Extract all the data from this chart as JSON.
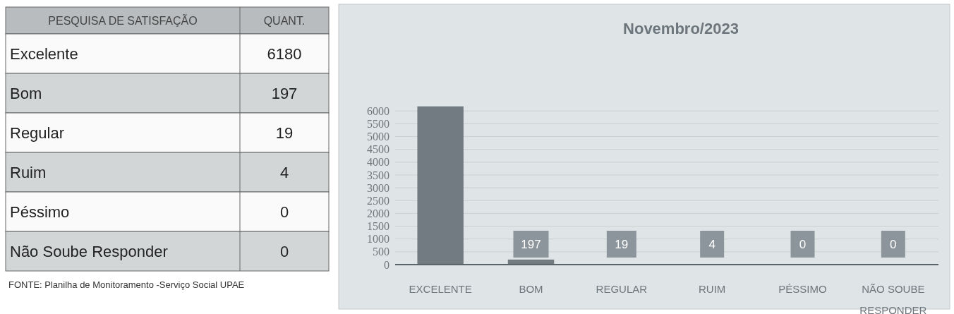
{
  "chart_data": {
    "type": "bar",
    "title": "Novembro/2023",
    "categories": [
      "EXCELENTE",
      "BOM",
      "REGULAR",
      "RUIM",
      "PÉSSIMO",
      "NÃO SOUBE RESPONDER"
    ],
    "values": [
      6180,
      197,
      19,
      4,
      0,
      0
    ],
    "color": "#737b82",
    "value_labels": [
      null,
      "197",
      "19",
      "4",
      "0",
      "0"
    ],
    "ylim": [
      0,
      6200
    ],
    "yticks": [
      0,
      500,
      1000,
      1500,
      2000,
      2500,
      3000,
      3500,
      4000,
      4500,
      5000,
      5500,
      6000
    ],
    "grid": "y",
    "annotations": [
      "PESQUISA DE SATISFAÇÃO",
      "QUANT.",
      "Excelente",
      "6180",
      "Bom",
      "197",
      "Regular",
      "19",
      "Ruim",
      "4",
      "Péssimo",
      "0",
      "Não Soube Responder",
      "0",
      "FONTE: Planilha de Monitoramento -Serviço Social UPAE"
    ]
  }
}
